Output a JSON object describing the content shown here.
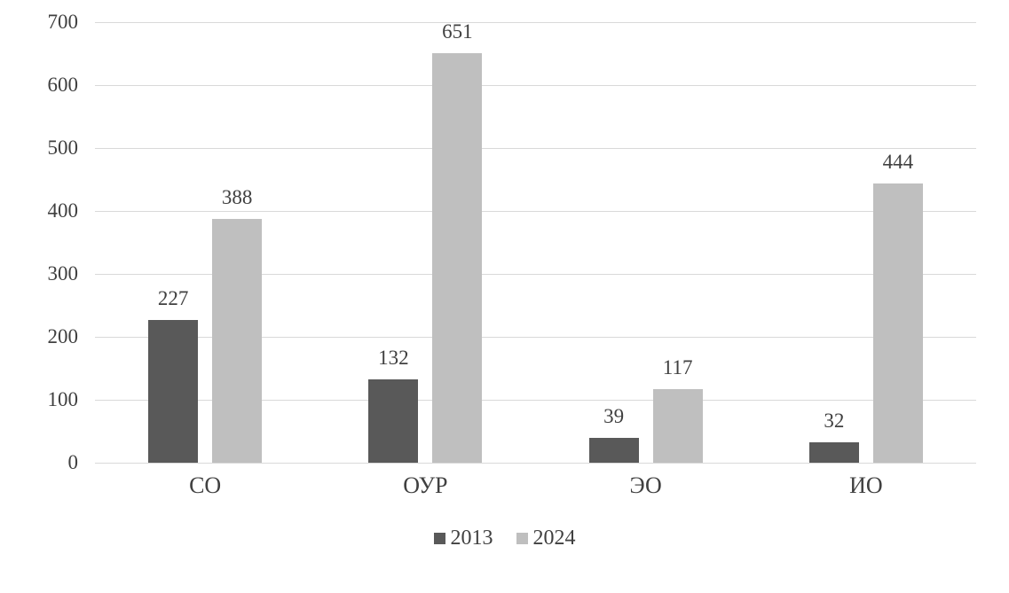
{
  "chart_data": {
    "type": "bar",
    "categories": [
      "СО",
      "ОУР",
      "ЭО",
      "ИО"
    ],
    "series": [
      {
        "name": "2013",
        "color": "#595959",
        "values": [
          227,
          132,
          39,
          32
        ]
      },
      {
        "name": "2024",
        "color": "#bfbfbf",
        "values": [
          388,
          651,
          117,
          444
        ]
      }
    ],
    "title": "",
    "xlabel": "",
    "ylabel": "",
    "ylim": [
      0,
      700
    ],
    "yticks": [
      0,
      100,
      200,
      300,
      400,
      500,
      600,
      700
    ],
    "grid": true,
    "legend_position": "bottom",
    "data_labels": true
  },
  "colors": {
    "background": "#ffffff",
    "grid": "#d9d9d9",
    "text": "#404040"
  }
}
